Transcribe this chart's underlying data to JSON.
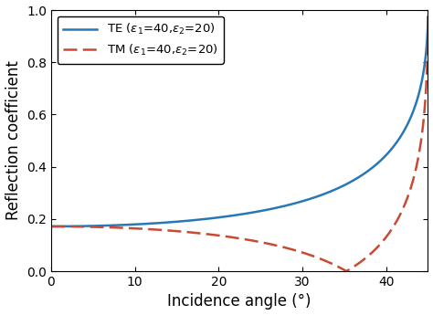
{
  "eps1": 40,
  "eps2": 20,
  "xlabel": "Incidence angle (°)",
  "ylabel": "Reflection coefficient",
  "xlim": [
    0,
    45
  ],
  "ylim": [
    0,
    1
  ],
  "xticks": [
    0,
    10,
    20,
    30,
    40
  ],
  "yticks": [
    0,
    0.2,
    0.4,
    0.6,
    0.8,
    1
  ],
  "te_color": "#2878b5",
  "tm_color": "#c84b31",
  "te_label": "TE ($\\epsilon_1$=40,$\\epsilon_2$=20)",
  "tm_label": "TM ($\\epsilon_1$=40,$\\epsilon_2$=20)",
  "linewidth": 1.8,
  "legend_fontsize": 9.5,
  "axis_label_fontsize": 12,
  "tick_fontsize": 10,
  "figsize": [
    4.74,
    3.45
  ],
  "dpi": 100
}
